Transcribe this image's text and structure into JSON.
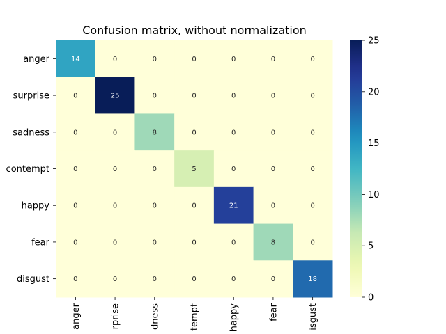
{
  "chart_data": {
    "type": "heatmap",
    "title": "Confusion matrix, without normalization",
    "rows": [
      "anger",
      "surprise",
      "sadness",
      "contempt",
      "happy",
      "fear",
      "disgust"
    ],
    "columns": [
      "anger",
      "rprise",
      "dness",
      "tempt",
      "happy",
      "fear",
      "isgust"
    ],
    "values": [
      [
        14,
        0,
        0,
        0,
        0,
        0,
        0
      ],
      [
        0,
        25,
        0,
        0,
        0,
        0,
        0
      ],
      [
        0,
        0,
        8,
        0,
        0,
        0,
        0
      ],
      [
        0,
        0,
        0,
        5,
        0,
        0,
        0
      ],
      [
        0,
        0,
        0,
        0,
        21,
        0,
        0
      ],
      [
        0,
        0,
        0,
        0,
        0,
        8,
        0
      ],
      [
        0,
        0,
        0,
        0,
        0,
        0,
        18
      ]
    ],
    "colorbar": {
      "min": 0,
      "max": 25,
      "ticks": [
        0,
        5,
        10,
        15,
        20,
        25
      ],
      "colormap": "YlGnBu"
    }
  }
}
